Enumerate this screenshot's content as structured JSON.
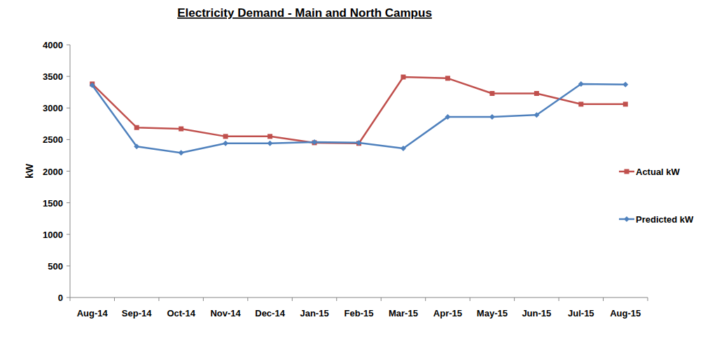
{
  "chart_data": {
    "type": "line",
    "title": "Electricity Demand - Main and North Campus",
    "y_label": "kW",
    "categories": [
      "Aug-14",
      "Sep-14",
      "Oct-14",
      "Nov-14",
      "Dec-14",
      "Jan-15",
      "Feb-15",
      "Mar-15",
      "Apr-15",
      "May-15",
      "Jun-15",
      "Jul-15",
      "Aug-15"
    ],
    "series": [
      {
        "name": "Actual kW",
        "color": "#c0504d",
        "marker": "square",
        "values": [
          3380,
          2690,
          2670,
          2550,
          2550,
          2450,
          2440,
          3490,
          3470,
          3230,
          3230,
          3060,
          3060
        ]
      },
      {
        "name": "Predicted kW",
        "color": "#4f81bd",
        "marker": "diamond",
        "values": [
          3360,
          2390,
          2290,
          2440,
          2440,
          2460,
          2450,
          2360,
          2860,
          2860,
          2890,
          3380,
          3370
        ]
      }
    ],
    "ylim": [
      0,
      4000
    ],
    "yticks": [
      0,
      500,
      1000,
      1500,
      2000,
      2500,
      3000,
      3500,
      4000
    ],
    "grid": false,
    "legend": "right"
  }
}
